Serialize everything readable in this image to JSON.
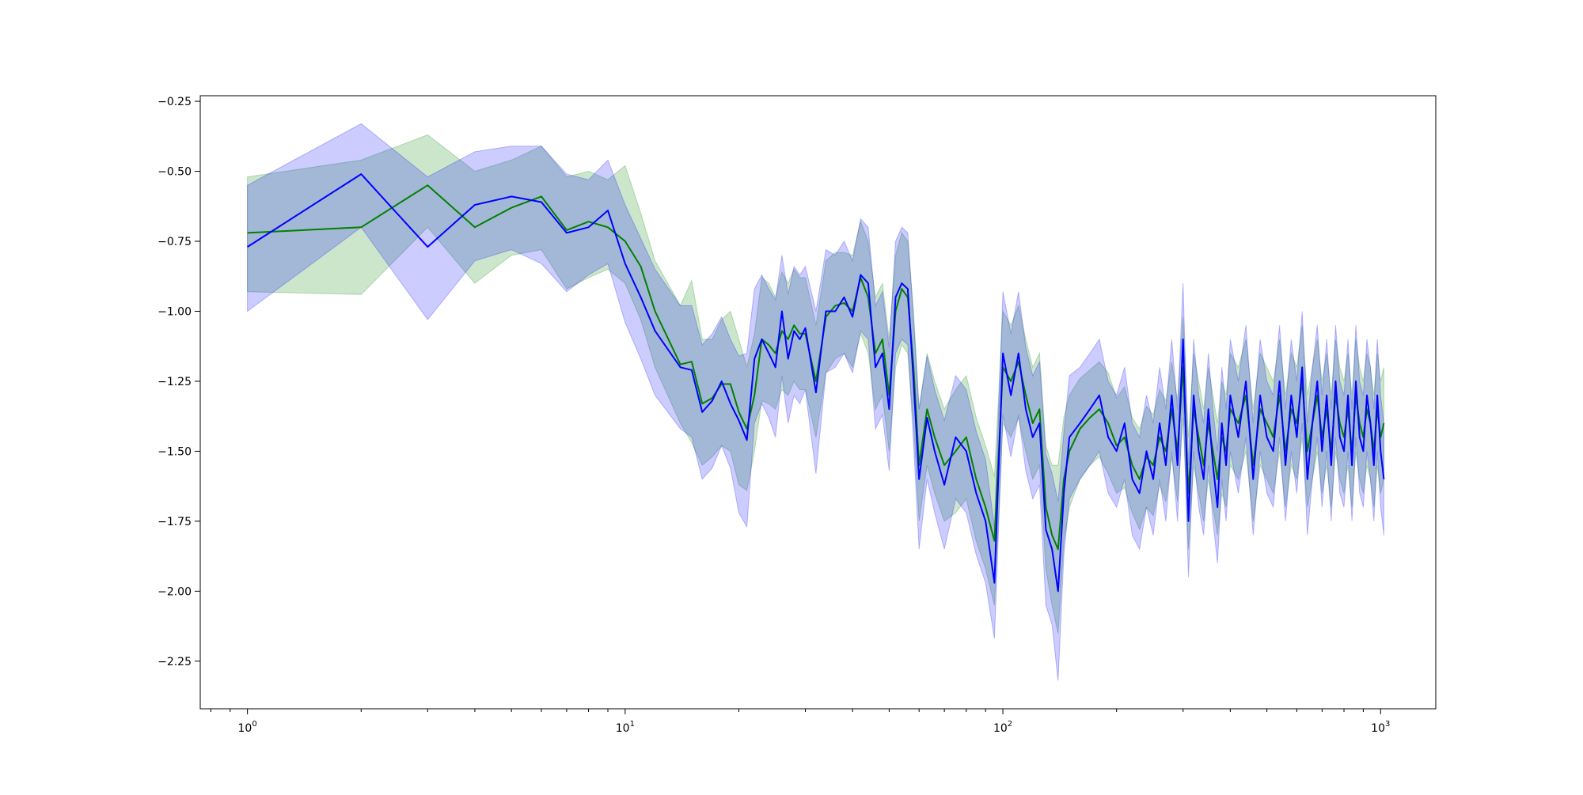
{
  "chart_data": {
    "type": "line",
    "title": "",
    "xlabel": "",
    "ylabel": "",
    "xscale": "log",
    "xlim": [
      0.75,
      1400
    ],
    "ylim": [
      -2.42,
      -0.23
    ],
    "grid": false,
    "legend": "none",
    "x_ticks": [
      {
        "value": 1,
        "base": "10",
        "exp": "0"
      },
      {
        "value": 10,
        "base": "10",
        "exp": "1"
      },
      {
        "value": 100,
        "base": "10",
        "exp": "2"
      },
      {
        "value": 1000,
        "base": "10",
        "exp": "3"
      }
    ],
    "y_ticks": [
      {
        "value": -0.25,
        "label": "−0.25"
      },
      {
        "value": -0.5,
        "label": "−0.50"
      },
      {
        "value": -0.75,
        "label": "−0.75"
      },
      {
        "value": -1.0,
        "label": "−1.00"
      },
      {
        "value": -1.25,
        "label": "−1.25"
      },
      {
        "value": -1.5,
        "label": "−1.50"
      },
      {
        "value": -1.75,
        "label": "−1.75"
      },
      {
        "value": -2.0,
        "label": "−2.00"
      },
      {
        "value": -2.25,
        "label": "−2.25"
      }
    ],
    "series": [
      {
        "color": "#008000",
        "band_color": "#008000",
        "band_opacity": 0.2,
        "x": [
          1,
          2,
          3,
          4,
          5,
          6,
          7,
          8,
          9,
          10,
          11,
          12,
          14,
          15,
          16,
          17,
          18,
          19,
          20,
          21,
          22,
          23,
          24,
          25,
          26,
          27,
          28,
          29,
          30,
          32,
          34,
          36,
          38,
          40,
          42,
          44,
          46,
          48,
          50,
          52,
          54,
          56,
          58,
          60,
          63,
          66,
          70,
          75,
          80,
          85,
          90,
          95,
          100,
          105,
          110,
          115,
          120,
          125,
          130,
          135,
          140,
          145,
          150,
          160,
          170,
          180,
          190,
          200,
          210,
          220,
          230,
          240,
          250,
          260,
          270,
          280,
          290,
          300,
          310,
          320,
          330,
          340,
          350,
          360,
          370,
          380,
          390,
          400,
          420,
          440,
          460,
          480,
          500,
          520,
          540,
          560,
          580,
          600,
          620,
          640,
          660,
          680,
          700,
          720,
          740,
          760,
          780,
          800,
          820,
          840,
          860,
          880,
          900,
          920,
          940,
          960,
          980,
          1000,
          1020
        ],
        "y": [
          -0.72,
          -0.7,
          -0.55,
          -0.7,
          -0.63,
          -0.59,
          -0.71,
          -0.68,
          -0.7,
          -0.75,
          -0.84,
          -1.0,
          -1.19,
          -1.18,
          -1.33,
          -1.31,
          -1.26,
          -1.26,
          -1.36,
          -1.42,
          -1.3,
          -1.1,
          -1.12,
          -1.15,
          -1.07,
          -1.1,
          -1.05,
          -1.08,
          -1.08,
          -1.25,
          -1.02,
          -0.98,
          -0.97,
          -1.0,
          -0.88,
          -0.95,
          -1.15,
          -1.1,
          -1.3,
          -1.0,
          -0.92,
          -0.95,
          -1.2,
          -1.55,
          -1.35,
          -1.45,
          -1.55,
          -1.5,
          -1.45,
          -1.6,
          -1.7,
          -1.82,
          -1.2,
          -1.25,
          -1.18,
          -1.3,
          -1.4,
          -1.35,
          -1.7,
          -1.8,
          -1.85,
          -1.6,
          -1.5,
          -1.42,
          -1.38,
          -1.35,
          -1.4,
          -1.48,
          -1.45,
          -1.55,
          -1.6,
          -1.52,
          -1.55,
          -1.45,
          -1.5,
          -1.35,
          -1.5,
          -1.2,
          -1.65,
          -1.35,
          -1.45,
          -1.55,
          -1.4,
          -1.5,
          -1.6,
          -1.45,
          -1.5,
          -1.35,
          -1.4,
          -1.3,
          -1.55,
          -1.35,
          -1.4,
          -1.45,
          -1.3,
          -1.5,
          -1.35,
          -1.4,
          -1.25,
          -1.5,
          -1.4,
          -1.3,
          -1.45,
          -1.35,
          -1.5,
          -1.3,
          -1.4,
          -1.45,
          -1.35,
          -1.5,
          -1.3,
          -1.4,
          -1.45,
          -1.35,
          -1.4,
          -1.5,
          -1.35,
          -1.45,
          -1.4
        ],
        "lower": [
          -0.93,
          -0.94,
          -0.7,
          -0.9,
          -0.8,
          -0.78,
          -0.92,
          -0.88,
          -0.85,
          -0.9,
          -1.03,
          -1.2,
          -1.4,
          -1.47,
          -1.55,
          -1.52,
          -1.48,
          -1.5,
          -1.62,
          -1.64,
          -1.5,
          -1.32,
          -1.33,
          -1.35,
          -1.28,
          -1.3,
          -1.25,
          -1.28,
          -1.28,
          -1.45,
          -1.22,
          -1.17,
          -1.15,
          -1.2,
          -1.08,
          -1.15,
          -1.35,
          -1.3,
          -1.5,
          -1.2,
          -1.12,
          -1.15,
          -1.4,
          -1.75,
          -1.55,
          -1.65,
          -1.75,
          -1.72,
          -1.67,
          -1.82,
          -1.92,
          -2.05,
          -1.4,
          -1.45,
          -1.38,
          -1.5,
          -1.6,
          -1.55,
          -1.92,
          -2.05,
          -2.15,
          -1.82,
          -1.7,
          -1.6,
          -1.55,
          -1.52,
          -1.58,
          -1.65,
          -1.63,
          -1.72,
          -1.78,
          -1.7,
          -1.73,
          -1.62,
          -1.68,
          -1.52,
          -1.68,
          -1.38,
          -1.85,
          -1.55,
          -1.65,
          -1.75,
          -1.6,
          -1.7,
          -1.8,
          -1.65,
          -1.7,
          -1.55,
          -1.6,
          -1.5,
          -1.75,
          -1.55,
          -1.6,
          -1.65,
          -1.5,
          -1.7,
          -1.55,
          -1.6,
          -1.45,
          -1.7,
          -1.6,
          -1.5,
          -1.65,
          -1.55,
          -1.7,
          -1.5,
          -1.6,
          -1.65,
          -1.55,
          -1.7,
          -1.5,
          -1.6,
          -1.65,
          -1.55,
          -1.6,
          -1.7,
          -1.55,
          -1.65,
          -1.6
        ],
        "upper": [
          -0.52,
          -0.46,
          -0.37,
          -0.5,
          -0.46,
          -0.41,
          -0.52,
          -0.5,
          -0.53,
          -0.48,
          -0.65,
          -0.82,
          -0.98,
          -0.89,
          -1.1,
          -1.1,
          -1.03,
          -1.0,
          -1.1,
          -1.2,
          -1.08,
          -0.88,
          -0.9,
          -0.95,
          -0.86,
          -0.9,
          -0.85,
          -0.88,
          -0.88,
          -1.05,
          -0.82,
          -0.79,
          -0.79,
          -0.8,
          -0.68,
          -0.75,
          -0.95,
          -0.9,
          -1.1,
          -0.8,
          -0.72,
          -0.75,
          -1.0,
          -1.35,
          -1.15,
          -1.25,
          -1.35,
          -1.28,
          -1.23,
          -1.38,
          -1.48,
          -1.59,
          -1.0,
          -1.05,
          -0.98,
          -1.1,
          -1.2,
          -1.15,
          -1.48,
          -1.55,
          -1.55,
          -1.38,
          -1.3,
          -1.24,
          -1.21,
          -1.18,
          -1.22,
          -1.31,
          -1.27,
          -1.38,
          -1.42,
          -1.34,
          -1.37,
          -1.28,
          -1.32,
          -1.18,
          -1.32,
          -1.02,
          -1.45,
          -1.15,
          -1.25,
          -1.35,
          -1.2,
          -1.3,
          -1.4,
          -1.25,
          -1.3,
          -1.15,
          -1.2,
          -1.1,
          -1.35,
          -1.15,
          -1.2,
          -1.25,
          -1.1,
          -1.3,
          -1.15,
          -1.2,
          -1.05,
          -1.3,
          -1.2,
          -1.1,
          -1.25,
          -1.15,
          -1.3,
          -1.1,
          -1.2,
          -1.25,
          -1.15,
          -1.3,
          -1.1,
          -1.2,
          -1.25,
          -1.15,
          -1.2,
          -1.3,
          -1.15,
          -1.25,
          -1.2
        ]
      },
      {
        "color": "#0000ff",
        "band_color": "#0000ff",
        "band_opacity": 0.2,
        "x": [
          1,
          2,
          3,
          4,
          5,
          6,
          7,
          8,
          9,
          10,
          11,
          12,
          14,
          15,
          16,
          17,
          18,
          19,
          20,
          21,
          22,
          23,
          24,
          25,
          26,
          27,
          28,
          29,
          30,
          32,
          34,
          36,
          38,
          40,
          42,
          44,
          46,
          48,
          50,
          52,
          54,
          56,
          58,
          60,
          63,
          66,
          70,
          75,
          80,
          85,
          90,
          95,
          100,
          105,
          110,
          115,
          120,
          125,
          130,
          135,
          140,
          145,
          150,
          160,
          170,
          180,
          190,
          200,
          210,
          220,
          230,
          240,
          250,
          260,
          270,
          280,
          290,
          300,
          310,
          320,
          330,
          340,
          350,
          360,
          370,
          380,
          390,
          400,
          420,
          440,
          460,
          480,
          500,
          520,
          540,
          560,
          580,
          600,
          620,
          640,
          660,
          680,
          700,
          720,
          740,
          760,
          780,
          800,
          820,
          840,
          860,
          880,
          900,
          920,
          940,
          960,
          980,
          1000,
          1020
        ],
        "y": [
          -0.77,
          -0.51,
          -0.77,
          -0.62,
          -0.59,
          -0.61,
          -0.72,
          -0.7,
          -0.64,
          -0.83,
          -0.95,
          -1.07,
          -1.2,
          -1.21,
          -1.36,
          -1.32,
          -1.25,
          -1.33,
          -1.39,
          -1.46,
          -1.17,
          -1.1,
          -1.15,
          -1.2,
          -1.0,
          -1.17,
          -1.07,
          -1.1,
          -1.06,
          -1.29,
          -1.0,
          -1.0,
          -0.95,
          -1.02,
          -0.87,
          -0.9,
          -1.2,
          -1.15,
          -1.35,
          -0.95,
          -0.9,
          -0.92,
          -1.25,
          -1.6,
          -1.38,
          -1.5,
          -1.62,
          -1.45,
          -1.5,
          -1.65,
          -1.75,
          -1.97,
          -1.15,
          -1.3,
          -1.15,
          -1.35,
          -1.45,
          -1.4,
          -1.78,
          -1.85,
          -2.0,
          -1.65,
          -1.45,
          -1.4,
          -1.35,
          -1.3,
          -1.45,
          -1.5,
          -1.4,
          -1.6,
          -1.65,
          -1.5,
          -1.6,
          -1.4,
          -1.55,
          -1.3,
          -1.55,
          -1.1,
          -1.75,
          -1.3,
          -1.5,
          -1.6,
          -1.35,
          -1.55,
          -1.7,
          -1.4,
          -1.55,
          -1.3,
          -1.45,
          -1.25,
          -1.6,
          -1.3,
          -1.45,
          -1.5,
          -1.25,
          -1.55,
          -1.3,
          -1.45,
          -1.2,
          -1.6,
          -1.4,
          -1.25,
          -1.5,
          -1.3,
          -1.55,
          -1.25,
          -1.45,
          -1.5,
          -1.3,
          -1.55,
          -1.25,
          -1.45,
          -1.5,
          -1.3,
          -1.4,
          -1.55,
          -1.3,
          -1.5,
          -1.6
        ],
        "lower": [
          -1.0,
          -0.7,
          -1.03,
          -0.82,
          -0.78,
          -0.83,
          -0.93,
          -0.87,
          -0.83,
          -1.04,
          -1.17,
          -1.3,
          -1.42,
          -1.45,
          -1.6,
          -1.56,
          -1.48,
          -1.56,
          -1.72,
          -1.77,
          -1.4,
          -1.33,
          -1.38,
          -1.45,
          -1.23,
          -1.4,
          -1.3,
          -1.33,
          -1.28,
          -1.58,
          -1.22,
          -1.2,
          -1.15,
          -1.22,
          -1.07,
          -1.1,
          -1.42,
          -1.37,
          -1.57,
          -1.15,
          -1.1,
          -1.12,
          -1.47,
          -1.85,
          -1.6,
          -1.72,
          -1.85,
          -1.67,
          -1.72,
          -1.87,
          -1.97,
          -2.17,
          -1.37,
          -1.52,
          -1.37,
          -1.57,
          -1.67,
          -1.62,
          -2.05,
          -2.12,
          -2.32,
          -1.87,
          -1.67,
          -1.6,
          -1.55,
          -1.5,
          -1.65,
          -1.7,
          -1.6,
          -1.8,
          -1.85,
          -1.7,
          -1.8,
          -1.6,
          -1.75,
          -1.5,
          -1.75,
          -1.3,
          -1.95,
          -1.5,
          -1.7,
          -1.8,
          -1.55,
          -1.75,
          -1.9,
          -1.6,
          -1.75,
          -1.5,
          -1.65,
          -1.45,
          -1.8,
          -1.5,
          -1.65,
          -1.7,
          -1.45,
          -1.75,
          -1.5,
          -1.65,
          -1.4,
          -1.8,
          -1.6,
          -1.45,
          -1.7,
          -1.5,
          -1.75,
          -1.45,
          -1.65,
          -1.7,
          -1.5,
          -1.75,
          -1.45,
          -1.65,
          -1.7,
          -1.5,
          -1.6,
          -1.75,
          -1.5,
          -1.7,
          -1.8
        ],
        "upper": [
          -0.55,
          -0.33,
          -0.52,
          -0.43,
          -0.41,
          -0.41,
          -0.51,
          -0.53,
          -0.46,
          -0.62,
          -0.74,
          -0.85,
          -0.98,
          -0.98,
          -1.12,
          -1.08,
          -1.02,
          -1.1,
          -1.16,
          -1.15,
          -0.92,
          -0.87,
          -0.92,
          -0.96,
          -0.8,
          -0.94,
          -0.84,
          -0.87,
          -0.84,
          -1.0,
          -0.78,
          -0.8,
          -0.75,
          -0.82,
          -0.67,
          -0.7,
          -0.98,
          -0.93,
          -1.13,
          -0.75,
          -0.7,
          -0.72,
          -1.03,
          -1.35,
          -1.16,
          -1.28,
          -1.39,
          -1.23,
          -1.28,
          -1.43,
          -1.53,
          -1.77,
          -0.93,
          -1.08,
          -0.93,
          -1.13,
          -1.23,
          -1.18,
          -1.51,
          -1.58,
          -1.68,
          -1.43,
          -1.23,
          -1.2,
          -1.15,
          -1.1,
          -1.25,
          -1.3,
          -1.2,
          -1.4,
          -1.45,
          -1.3,
          -1.4,
          -1.2,
          -1.35,
          -1.1,
          -1.35,
          -0.9,
          -1.55,
          -1.1,
          -1.3,
          -1.4,
          -1.15,
          -1.35,
          -1.5,
          -1.2,
          -1.35,
          -1.1,
          -1.25,
          -1.05,
          -1.4,
          -1.1,
          -1.25,
          -1.3,
          -1.05,
          -1.35,
          -1.1,
          -1.25,
          -1.0,
          -1.4,
          -1.2,
          -1.05,
          -1.3,
          -1.1,
          -1.35,
          -1.05,
          -1.25,
          -1.3,
          -1.1,
          -1.35,
          -1.05,
          -1.25,
          -1.3,
          -1.1,
          -1.2,
          -1.35,
          -1.1,
          -1.3,
          -1.4
        ]
      }
    ]
  }
}
